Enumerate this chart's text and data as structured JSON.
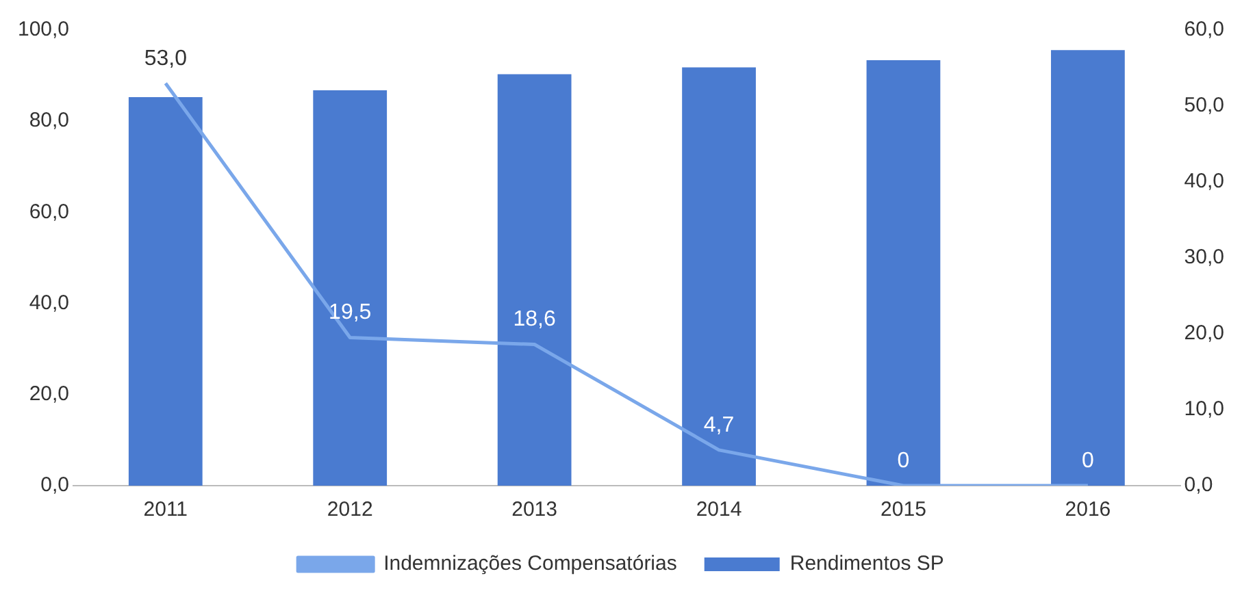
{
  "chart_data": {
    "type": "bar",
    "categories": [
      "2011",
      "2012",
      "2013",
      "2014",
      "2015",
      "2016"
    ],
    "series": [
      {
        "name": "Rendimentos SP",
        "color": "#4a7bd0",
        "values": [
          85.3,
          86.8,
          90.3,
          91.8,
          93.4,
          95.6
        ]
      },
      {
        "name": "Indemnizações Compensatórias",
        "type": "line",
        "axis": "y2",
        "color": "#7aa7ea",
        "marker": "none",
        "values": [
          53.0,
          19.5,
          18.6,
          4.7,
          0,
          0
        ],
        "value_labels": [
          "53,0",
          "19,5",
          "18,6",
          "4,7",
          "0",
          "0"
        ]
      }
    ],
    "ylim": [
      0,
      100
    ],
    "yticks": [
      {
        "value": 0,
        "label": "0,0"
      },
      {
        "value": 20,
        "label": "20,0"
      },
      {
        "value": 40,
        "label": "40,0"
      },
      {
        "value": 60,
        "label": "60,0"
      },
      {
        "value": 80,
        "label": "80,0"
      },
      {
        "value": 100,
        "label": "100,0"
      }
    ],
    "y2lim": [
      0,
      60
    ],
    "y2ticks": [
      {
        "value": 0,
        "label": "0,0"
      },
      {
        "value": 10,
        "label": "10,0"
      },
      {
        "value": 20,
        "label": "20,0"
      },
      {
        "value": 30,
        "label": "30,0"
      },
      {
        "value": 40,
        "label": "40,0"
      },
      {
        "value": 50,
        "label": "50,0"
      },
      {
        "value": 60,
        "label": "60,0"
      }
    ],
    "grid": false,
    "legend": "bottom"
  }
}
